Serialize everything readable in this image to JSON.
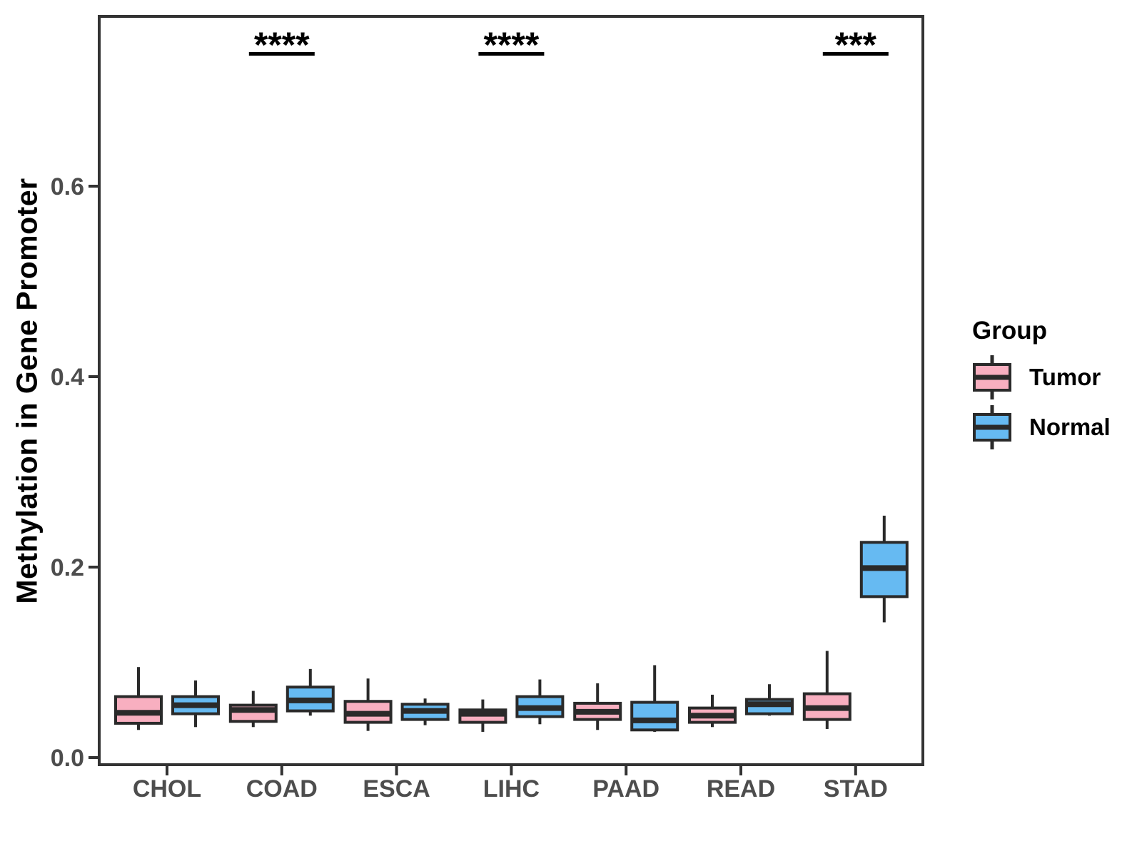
{
  "chart_data": {
    "type": "boxplot",
    "title": "",
    "xlabel": "",
    "ylabel": "Methylation in Gene Promoter",
    "grid": "off",
    "ylim": [
      0.0,
      0.78
    ],
    "y_ticks": [
      {
        "value": 0.0,
        "label": "0.0"
      },
      {
        "value": 0.2,
        "label": "0.2"
      },
      {
        "value": 0.4,
        "label": "0.4"
      },
      {
        "value": 0.6,
        "label": "0.6"
      }
    ],
    "categories": [
      "CHOL",
      "COAD",
      "ESCA",
      "LIHC",
      "PAAD",
      "READ",
      "STAD"
    ],
    "groups": [
      {
        "name": "Tumor",
        "color": "#F8AFC0"
      },
      {
        "name": "Normal",
        "color": "#66BAF2"
      }
    ],
    "series": [
      {
        "category": "CHOL",
        "group": "Tumor",
        "whisker_low": 0.029,
        "q1": 0.036,
        "median": 0.047,
        "q3": 0.064,
        "whisker_high": 0.095
      },
      {
        "category": "CHOL",
        "group": "Normal",
        "whisker_low": 0.032,
        "q1": 0.046,
        "median": 0.055,
        "q3": 0.064,
        "whisker_high": 0.081
      },
      {
        "category": "COAD",
        "group": "Tumor",
        "whisker_low": 0.032,
        "q1": 0.038,
        "median": 0.05,
        "q3": 0.055,
        "whisker_high": 0.07
      },
      {
        "category": "COAD",
        "group": "Normal",
        "whisker_low": 0.044,
        "q1": 0.049,
        "median": 0.06,
        "q3": 0.074,
        "whisker_high": 0.093
      },
      {
        "category": "ESCA",
        "group": "Tumor",
        "whisker_low": 0.028,
        "q1": 0.037,
        "median": 0.046,
        "q3": 0.059,
        "whisker_high": 0.083
      },
      {
        "category": "ESCA",
        "group": "Normal",
        "whisker_low": 0.034,
        "q1": 0.04,
        "median": 0.049,
        "q3": 0.056,
        "whisker_high": 0.062
      },
      {
        "category": "LIHC",
        "group": "Tumor",
        "whisker_low": 0.027,
        "q1": 0.037,
        "median": 0.046,
        "q3": 0.05,
        "whisker_high": 0.061
      },
      {
        "category": "LIHC",
        "group": "Normal",
        "whisker_low": 0.035,
        "q1": 0.043,
        "median": 0.052,
        "q3": 0.064,
        "whisker_high": 0.082
      },
      {
        "category": "PAAD",
        "group": "Tumor",
        "whisker_low": 0.029,
        "q1": 0.04,
        "median": 0.048,
        "q3": 0.057,
        "whisker_high": 0.078
      },
      {
        "category": "PAAD",
        "group": "Normal",
        "whisker_low": 0.027,
        "q1": 0.029,
        "median": 0.039,
        "q3": 0.058,
        "whisker_high": 0.097
      },
      {
        "category": "READ",
        "group": "Tumor",
        "whisker_low": 0.032,
        "q1": 0.037,
        "median": 0.044,
        "q3": 0.052,
        "whisker_high": 0.066
      },
      {
        "category": "READ",
        "group": "Normal",
        "whisker_low": 0.044,
        "q1": 0.046,
        "median": 0.056,
        "q3": 0.061,
        "whisker_high": 0.077
      },
      {
        "category": "STAD",
        "group": "Tumor",
        "whisker_low": 0.03,
        "q1": 0.04,
        "median": 0.052,
        "q3": 0.067,
        "whisker_high": 0.112
      },
      {
        "category": "STAD",
        "group": "Normal",
        "whisker_low": 0.142,
        "q1": 0.169,
        "median": 0.199,
        "q3": 0.226,
        "whisker_high": 0.254
      }
    ],
    "significance": [
      {
        "category": "COAD",
        "label": "****"
      },
      {
        "category": "LIHC",
        "label": "****"
      },
      {
        "category": "STAD",
        "label": "***"
      }
    ],
    "legend": {
      "title": "Group",
      "position": "right"
    },
    "colors": {
      "box_outline": "#2A2A2A",
      "panel_border": "#333333",
      "axis_text": "#4D4D4D",
      "annotation": "#000000",
      "background": "#FFFFFF"
    }
  }
}
